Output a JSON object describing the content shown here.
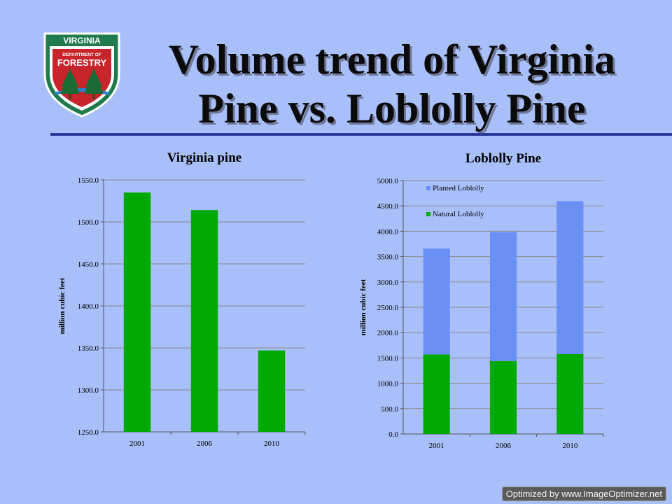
{
  "slide": {
    "title": "Volume trend of Virginia Pine vs. Loblolly Pine",
    "logo": {
      "top_text": "VIRGINIA",
      "middle_text": "DEPARTMENT OF",
      "main_text": "FORESTRY",
      "colors": {
        "shield": "#1f7a4d",
        "band": "#c8242c",
        "tree": "#1b6b34"
      }
    },
    "watermark": "Optimized by www.ImageOptimizer.net"
  },
  "colors": {
    "green": "#00aa00",
    "blue": "#6a8ff5",
    "background": "#a9bff9",
    "rule": "#2b3a9a"
  },
  "chart_data": [
    {
      "type": "bar",
      "title": "Virginia pine",
      "ylabel": "million cubic feet",
      "xlabel": "",
      "categories": [
        "2001",
        "2006",
        "2010"
      ],
      "values": [
        1535.0,
        1514.0,
        1347.0
      ],
      "ylim": [
        1250.0,
        1550.0
      ],
      "yticks": [
        "1250.0",
        "1300.0",
        "1350.0",
        "1400.0",
        "1450.0",
        "1500.0",
        "1550.0"
      ],
      "grid": true,
      "legend": "none"
    },
    {
      "type": "bar",
      "stacked": true,
      "title": "Loblolly Pine",
      "ylabel": "million cubic feet",
      "xlabel": "",
      "categories": [
        "2001",
        "2006",
        "2010"
      ],
      "series": [
        {
          "name": "Natural Loblolly",
          "values": [
            1570.0,
            1440.0,
            1575.0
          ]
        },
        {
          "name": "Planted Loblolly",
          "values": [
            2090.0,
            2545.0,
            3020.0
          ]
        }
      ],
      "legend_order": [
        "Planted Loblolly",
        "Natural Loblolly"
      ],
      "ylim": [
        0.0,
        5000.0
      ],
      "yticks": [
        "0.0",
        "500.0",
        "1000.0",
        "1500.0",
        "2000.0",
        "2500.0",
        "3000.0",
        "3500.0",
        "4000.0",
        "4500.0",
        "5000.0"
      ],
      "grid": true,
      "legend": "top-left"
    }
  ]
}
